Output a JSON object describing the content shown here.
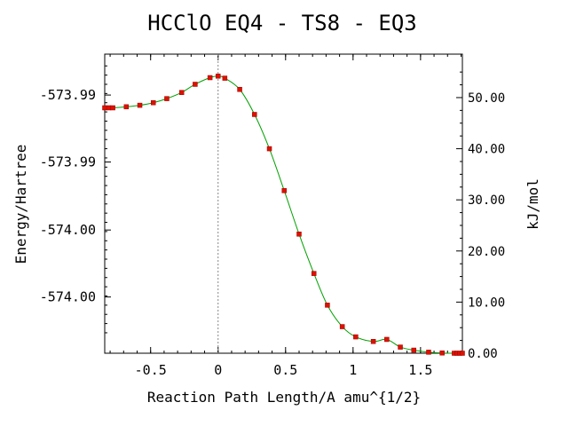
{
  "chart_data": {
    "type": "line",
    "title": "HCClO   EQ4 - TS8 - EQ3",
    "xlabel": "Reaction Path Length/A amu^{1/2}",
    "ylabel": "Energy/Hartree",
    "y2label": "kJ/mol",
    "xlim": [
      -0.84,
      1.81
    ],
    "x_ticks": [
      -0.5,
      0,
      0.5,
      1,
      1.5
    ],
    "x_tick_labels": [
      "-0.5",
      "0",
      "0.5",
      "1",
      "1.5"
    ],
    "x_minor_step": 0.1,
    "ylim_kjmol": [
      0,
      58.5
    ],
    "y2_ticks": [
      0,
      10,
      20,
      30,
      40,
      50
    ],
    "y2_tick_labels": [
      "0.00",
      "10.00",
      "20.00",
      "30.00",
      "40.00",
      "50.00"
    ],
    "y_left_ticks_kjmol": [
      50.5,
      37.4,
      24.1,
      11.0
    ],
    "y_left_tick_labels": [
      "-573.99",
      "-573.99",
      "-574.00",
      "-574.00"
    ],
    "ts_x": 0.0,
    "series": [
      {
        "line_color": "#00a000",
        "marker_color": "#dd1100",
        "points": [
          {
            "x": -0.84,
            "y": 48.0
          },
          {
            "x": -0.81,
            "y": 48.0
          },
          {
            "x": -0.78,
            "y": 48.0
          },
          {
            "x": -0.68,
            "y": 48.2
          },
          {
            "x": -0.58,
            "y": 48.5
          },
          {
            "x": -0.48,
            "y": 49.0
          },
          {
            "x": -0.38,
            "y": 49.8
          },
          {
            "x": -0.27,
            "y": 51.0
          },
          {
            "x": -0.17,
            "y": 52.6
          },
          {
            "x": -0.06,
            "y": 53.9
          },
          {
            "x": 0.0,
            "y": 54.2
          },
          {
            "x": 0.05,
            "y": 53.8
          },
          {
            "x": 0.16,
            "y": 51.6
          },
          {
            "x": 0.27,
            "y": 46.7
          },
          {
            "x": 0.38,
            "y": 40.0
          },
          {
            "x": 0.49,
            "y": 31.8
          },
          {
            "x": 0.6,
            "y": 23.3
          },
          {
            "x": 0.71,
            "y": 15.6
          },
          {
            "x": 0.81,
            "y": 9.4
          },
          {
            "x": 0.92,
            "y": 5.2
          },
          {
            "x": 1.02,
            "y": 3.2
          },
          {
            "x": 1.15,
            "y": 2.3
          },
          {
            "x": 1.25,
            "y": 2.7
          },
          {
            "x": 1.35,
            "y": 1.2
          },
          {
            "x": 1.45,
            "y": 0.6
          },
          {
            "x": 1.56,
            "y": 0.2
          },
          {
            "x": 1.66,
            "y": 0.05
          },
          {
            "x": 1.75,
            "y": 0.0
          },
          {
            "x": 1.77,
            "y": 0.0
          },
          {
            "x": 1.79,
            "y": 0.0
          },
          {
            "x": 1.81,
            "y": 0.0
          }
        ]
      }
    ]
  }
}
